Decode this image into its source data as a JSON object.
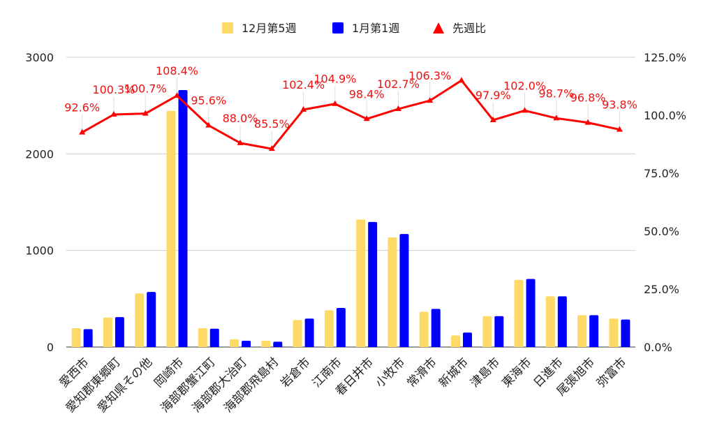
{
  "chart_data": {
    "type": "bar",
    "categories": [
      "愛西市",
      "愛知郡東郷町",
      "愛知県その他",
      "岡崎市",
      "海部郡蟹江町",
      "海部郡大治町",
      "海部郡飛島村",
      "岩倉市",
      "江南市",
      "春日井市",
      "小牧市",
      "常滑市",
      "新城市",
      "津島市",
      "東海市",
      "日進市",
      "尾張旭市",
      "弥富市"
    ],
    "series": [
      {
        "name": "12月第5週",
        "type": "bar",
        "axis": "left",
        "color": "#ffd966",
        "values": [
          195,
          305,
          555,
          2445,
          195,
          80,
          65,
          280,
          380,
          1320,
          1135,
          365,
          120,
          320,
          695,
          525,
          330,
          295
        ]
      },
      {
        "name": "1月第1週",
        "type": "bar",
        "axis": "left",
        "color": "#0000ff",
        "values": [
          185,
          310,
          570,
          2660,
          190,
          65,
          55,
          295,
          405,
          1295,
          1170,
          395,
          150,
          320,
          705,
          525,
          330,
          285
        ]
      },
      {
        "name": "先週比",
        "type": "line",
        "axis": "right",
        "color": "#ff0000",
        "values": [
          92.6,
          100.3,
          100.7,
          108.4,
          95.6,
          88.0,
          85.5,
          102.4,
          104.9,
          98.4,
          102.7,
          106.3,
          115.0,
          97.9,
          102.0,
          98.7,
          96.8,
          93.8
        ],
        "labels": [
          "92.6%",
          "100.3%",
          "100.7%",
          "108.4%",
          "95.6%",
          "88.0%",
          "85.5%",
          "102.4%",
          "104.9%",
          "98.4%",
          "102.7%",
          "106.3%",
          "",
          "97.9%",
          "102.0%",
          "98.7%",
          "96.8%",
          "93.8%"
        ]
      }
    ],
    "y_left": {
      "min": 0,
      "max": 3000,
      "ticks": [
        0,
        1000,
        2000,
        3000
      ],
      "tick_labels": [
        "0",
        "1000",
        "2000",
        "3000"
      ]
    },
    "y_right": {
      "min": 0,
      "max": 125,
      "ticks": [
        0,
        25,
        50,
        75,
        100,
        125
      ],
      "tick_labels": [
        "0.0%",
        "25.0%",
        "50.0%",
        "75.0%",
        "100.0%",
        "125.0%"
      ]
    },
    "grid": true,
    "legend_position": "top"
  }
}
